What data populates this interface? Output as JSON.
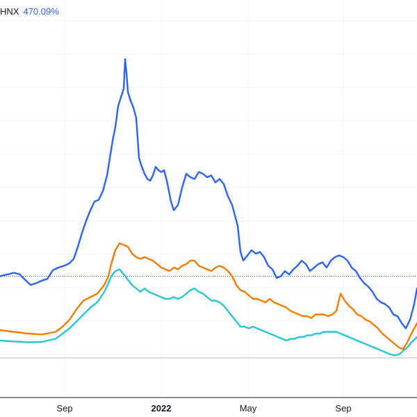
{
  "legend": {
    "symbol": "HNX",
    "change": "470.09%"
  },
  "chart_data": {
    "type": "line",
    "xlabel": "",
    "ylabel": "",
    "x_ticks": [
      {
        "label": "Sep",
        "major": false
      },
      {
        "label": "2022",
        "major": true
      },
      {
        "label": "May",
        "major": false
      },
      {
        "label": "Sep",
        "major": false
      }
    ],
    "grid": true,
    "legend_position": "top-left",
    "baseline": 0,
    "reference_line": 470.09,
    "series": [
      {
        "name": "HNX",
        "color": "#2962ff",
        "x": [
          0,
          10,
          20,
          28,
          36,
          44,
          52,
          60,
          68,
          76,
          84,
          92,
          100,
          106,
          112,
          118,
          124,
          130,
          136,
          142,
          148,
          154,
          158,
          162,
          166,
          170,
          174,
          178,
          180,
          182,
          184,
          188,
          192,
          196,
          200,
          204,
          208,
          212,
          216,
          220,
          224,
          228,
          232,
          236,
          240,
          246,
          250,
          256,
          262,
          268,
          274,
          280,
          286,
          292,
          298,
          304,
          310,
          316,
          322,
          328,
          334,
          338,
          342,
          346,
          350,
          356,
          362,
          368,
          374,
          380,
          386,
          392,
          398,
          404,
          410,
          416,
          422,
          428,
          434,
          440,
          446,
          452,
          458,
          464,
          470,
          476,
          482,
          488,
          494,
          500,
          506,
          512,
          518,
          524,
          530,
          536,
          542,
          548,
          554,
          560,
          566,
          572,
          578,
          584,
          590,
          596,
          600
        ],
        "y": [
          470,
          480,
          490,
          482,
          450,
          420,
          430,
          445,
          455,
          505,
          520,
          530,
          545,
          570,
          640,
          720,
          790,
          850,
          900,
          910,
          960,
          1050,
          1150,
          1250,
          1330,
          1450,
          1500,
          1550,
          1720,
          1640,
          1530,
          1480,
          1440,
          1380,
          1150,
          1100,
          1060,
          1030,
          1020,
          1050,
          1100,
          1080,
          1070,
          1080,
          1020,
          900,
          850,
          880,
          980,
          1060,
          1040,
          1030,
          1070,
          1060,
          1040,
          1050,
          1010,
          1030,
          1000,
          930,
          880,
          820,
          760,
          610,
          560,
          590,
          620,
          600,
          610,
          580,
          530,
          510,
          460,
          470,
          500,
          480,
          510,
          530,
          560,
          540,
          500,
          520,
          540,
          550,
          520,
          560,
          580,
          590,
          580,
          560,
          520,
          500,
          460,
          430,
          410,
          380,
          340,
          320,
          310,
          290,
          250,
          240,
          200,
          170,
          220,
          310,
          400
        ]
      },
      {
        "name": "",
        "color": "#f57c00",
        "x": [
          0,
          20,
          40,
          60,
          80,
          90,
          100,
          110,
          120,
          130,
          140,
          150,
          156,
          160,
          166,
          172,
          178,
          184,
          190,
          196,
          202,
          208,
          214,
          220,
          226,
          232,
          238,
          244,
          250,
          256,
          262,
          268,
          274,
          280,
          286,
          292,
          298,
          304,
          310,
          316,
          322,
          328,
          334,
          340,
          346,
          352,
          358,
          364,
          370,
          376,
          382,
          388,
          394,
          400,
          406,
          412,
          418,
          424,
          430,
          436,
          442,
          448,
          454,
          460,
          466,
          472,
          478,
          484,
          490,
          496,
          502,
          508,
          514,
          520,
          526,
          532,
          538,
          544,
          550,
          556,
          562,
          568,
          574,
          580,
          586,
          592,
          600
        ],
        "y": [
          160,
          150,
          140,
          135,
          150,
          180,
          220,
          280,
          330,
          350,
          370,
          420,
          470,
          540,
          620,
          660,
          650,
          640,
          600,
          580,
          570,
          580,
          570,
          560,
          540,
          520,
          510,
          500,
          520,
          510,
          530,
          540,
          560,
          560,
          530,
          520,
          510,
          500,
          520,
          530,
          520,
          500,
          470,
          420,
          390,
          380,
          360,
          340,
          340,
          330,
          320,
          340,
          320,
          310,
          300,
          290,
          270,
          260,
          250,
          240,
          240,
          230,
          250,
          250,
          250,
          240,
          250,
          270,
          370,
          330,
          300,
          280,
          250,
          240,
          220,
          210,
          190,
          170,
          140,
          120,
          100,
          80,
          60,
          50,
          90,
          140,
          200
        ]
      },
      {
        "name": "",
        "color": "#26c6da",
        "x": [
          0,
          20,
          40,
          60,
          80,
          90,
          100,
          110,
          120,
          130,
          140,
          150,
          156,
          160,
          166,
          172,
          178,
          184,
          190,
          196,
          202,
          208,
          214,
          220,
          226,
          232,
          238,
          244,
          250,
          256,
          262,
          268,
          274,
          280,
          286,
          292,
          298,
          304,
          310,
          316,
          322,
          328,
          334,
          340,
          346,
          352,
          358,
          364,
          370,
          376,
          382,
          388,
          394,
          400,
          406,
          412,
          418,
          424,
          430,
          436,
          442,
          448,
          454,
          460,
          466,
          472,
          478,
          484,
          490,
          496,
          502,
          508,
          514,
          520,
          526,
          532,
          538,
          544,
          550,
          556,
          562,
          568,
          574,
          580,
          586,
          592,
          600
        ],
        "y": [
          100,
          95,
          90,
          92,
          110,
          140,
          170,
          210,
          250,
          290,
          320,
          380,
          430,
          470,
          500,
          510,
          480,
          450,
          420,
          400,
          380,
          400,
          380,
          370,
          360,
          350,
          340,
          340,
          350,
          340,
          350,
          370,
          390,
          400,
          380,
          370,
          350,
          330,
          330,
          320,
          300,
          270,
          240,
          210,
          180,
          180,
          170,
          180,
          170,
          160,
          150,
          140,
          130,
          120,
          110,
          100,
          110,
          110,
          120,
          120,
          130,
          130,
          140,
          140,
          150,
          150,
          150,
          150,
          140,
          130,
          120,
          110,
          100,
          90,
          80,
          70,
          60,
          50,
          40,
          30,
          20,
          15,
          20,
          40,
          60,
          90,
          120
        ]
      }
    ]
  }
}
